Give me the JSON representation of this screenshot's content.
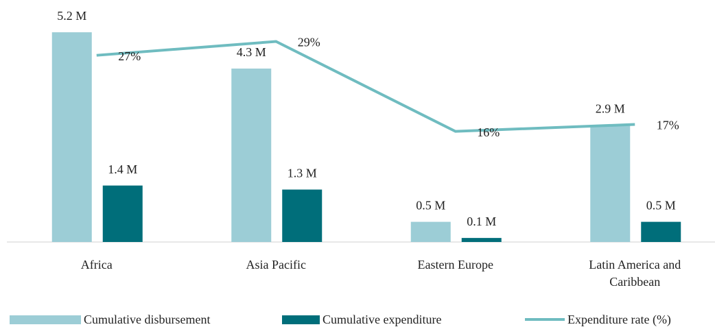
{
  "chart_data": {
    "type": "bar",
    "categories": [
      "Africa",
      "Asia Pacific",
      "Eastern Europe",
      "Latin America and Caribbean"
    ],
    "series": [
      {
        "name": "Cumulative disbursement",
        "type": "bar",
        "color": "#9ccdd6",
        "values": [
          5.2,
          4.3,
          0.5,
          2.9
        ],
        "value_labels": [
          "5.2 M",
          "4.3 M",
          "0.5 M",
          "2.9 M"
        ]
      },
      {
        "name": "Cumulative expenditure",
        "type": "bar",
        "color": "#006e7a",
        "values": [
          1.4,
          1.3,
          0.1,
          0.5
        ],
        "value_labels": [
          "1.4 M",
          "1.3 M",
          "0.1 M",
          "0.5 M"
        ]
      },
      {
        "name": "Expenditure rate (%)",
        "type": "line",
        "axis": "y2",
        "color": "#6fbcc0",
        "values": [
          27,
          29,
          16,
          17
        ],
        "value_labels": [
          "27%",
          "29%",
          "16%",
          "17%"
        ]
      }
    ],
    "ylim": [
      0,
      6
    ],
    "y2lim": [
      0,
      35
    ],
    "legend": "bottom"
  }
}
